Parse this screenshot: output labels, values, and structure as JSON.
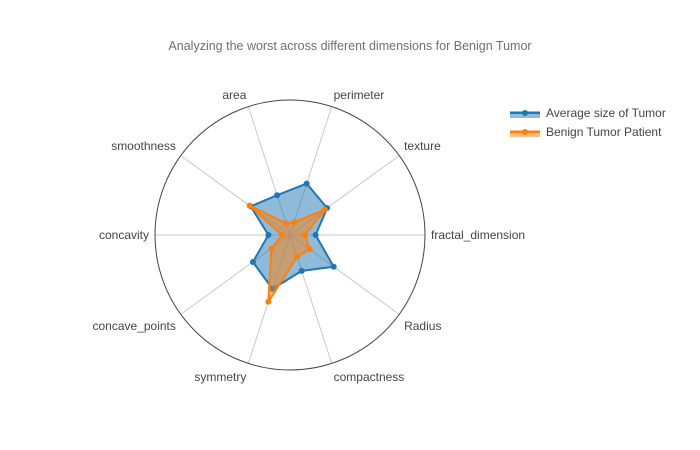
{
  "chart_data": {
    "type": "radar",
    "title": "Analyzing the worst across different dimensions for Benign Tumor",
    "axes": [
      "fractal_dimension",
      "texture",
      "perimeter",
      "area",
      "smoothness",
      "concavity",
      "concave_points",
      "symmetry",
      "compactness",
      "Radius"
    ],
    "range": [
      0,
      1
    ],
    "series": [
      {
        "name": "Average size of Tumor",
        "color": "#1f77b4",
        "values": [
          0.19,
          0.34,
          0.4,
          0.31,
          0.36,
          0.16,
          0.34,
          0.42,
          0.28,
          0.4
        ]
      },
      {
        "name": "Benign Tumor Patient",
        "color": "#ff7f0e",
        "values": [
          0.11,
          0.32,
          0.1,
          0.09,
          0.37,
          0.06,
          0.17,
          0.52,
          0.17,
          0.18
        ]
      }
    ],
    "grid": true,
    "legend": "top-right"
  }
}
